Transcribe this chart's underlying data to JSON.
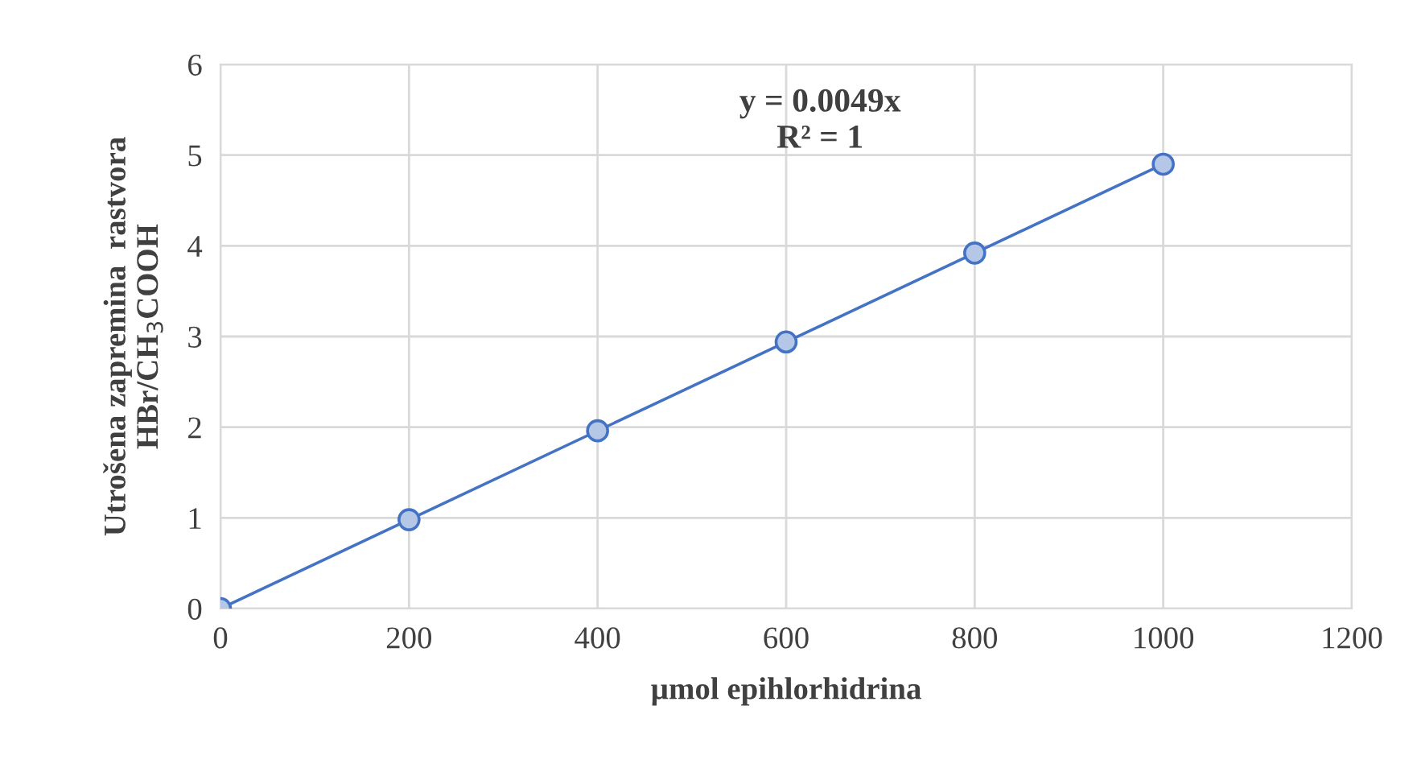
{
  "chart_data": {
    "type": "scatter",
    "xlabel": "µmol epihlorhidrina",
    "ylabel": "Utrošena zapremina  rastvora\nHBr/CH$_{3}$COOH",
    "x": [
      0,
      200,
      400,
      600,
      800,
      1000
    ],
    "series": [
      {
        "color": "#4472c4",
        "marker": "circle",
        "values": [
          0,
          0.98,
          1.96,
          2.94,
          3.92,
          4.9
        ]
      },
      {
        "type": "line",
        "color": "#4472c4",
        "x": [
          0,
          1000
        ],
        "values": [
          0,
          4.9
        ]
      }
    ],
    "annotations": [
      "y = 0.0049x\nR² = 1"
    ],
    "xlim": [
      0,
      1200
    ],
    "xticks": [
      0,
      200,
      400,
      600,
      800,
      1000,
      1200
    ],
    "ylim": [
      0,
      6
    ],
    "yticks": [
      0,
      1,
      2,
      3,
      4,
      5,
      6
    ],
    "grid": true,
    "line_style": "solid"
  }
}
